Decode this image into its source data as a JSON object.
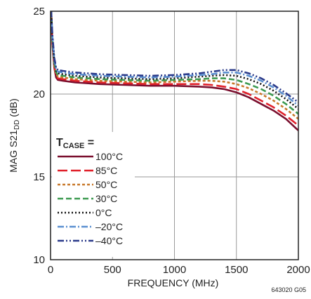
{
  "chart_data": {
    "type": "line",
    "title": "",
    "xlabel": "FREQUENCY (MHz)",
    "ylabel": "MAG S21DD (dB)",
    "ylabel_parts": {
      "main": "MAG S21",
      "sub": "DD",
      "unit": " (dB)"
    },
    "xlim": [
      0,
      2000
    ],
    "ylim": [
      10,
      25
    ],
    "xticks": [
      0,
      500,
      1000,
      1500,
      2000
    ],
    "yticks": [
      10,
      15,
      20,
      25
    ],
    "xtick_labels": [
      "0",
      "500",
      "1000",
      "1500",
      "2000"
    ],
    "ytick_labels": [
      "10",
      "15",
      "20",
      "25"
    ],
    "grid": true,
    "legend_placement": "lower-left",
    "legend_title": "TCASE =",
    "legend_title_parts": {
      "main": "T",
      "sub": "CASE",
      "tail": " ="
    },
    "note": "643020 G05",
    "series": [
      {
        "name": "100°C",
        "color": "#7a0f2e",
        "dash": "solid",
        "x": [
          5,
          15,
          30,
          45,
          60,
          100,
          200,
          400,
          600,
          800,
          1000,
          1200,
          1300,
          1400,
          1500,
          1600,
          1700,
          1800,
          1900,
          2000
        ],
        "y": [
          25.0,
          23.0,
          21.6,
          21.0,
          20.85,
          20.8,
          20.7,
          20.6,
          20.55,
          20.5,
          20.5,
          20.45,
          20.4,
          20.3,
          20.1,
          19.8,
          19.4,
          19.0,
          18.5,
          17.8
        ]
      },
      {
        "name": "85°C",
        "color": "#e0202a",
        "dash": "long",
        "x": [
          5,
          15,
          30,
          45,
          60,
          100,
          200,
          400,
          600,
          800,
          1000,
          1200,
          1300,
          1400,
          1500,
          1600,
          1700,
          1800,
          1900,
          2000
        ],
        "y": [
          25.0,
          23.1,
          21.7,
          21.1,
          20.95,
          20.9,
          20.8,
          20.7,
          20.65,
          20.6,
          20.6,
          20.6,
          20.55,
          20.45,
          20.3,
          20.0,
          19.6,
          19.2,
          18.7,
          18.1
        ]
      },
      {
        "name": "50°C",
        "color": "#c8782a",
        "dash": "short",
        "x": [
          5,
          15,
          30,
          45,
          60,
          100,
          200,
          400,
          600,
          800,
          1000,
          1200,
          1300,
          1400,
          1500,
          1600,
          1700,
          1800,
          1900,
          2000
        ],
        "y": [
          25.0,
          23.2,
          21.8,
          21.2,
          21.05,
          21.0,
          20.9,
          20.8,
          20.75,
          20.7,
          20.75,
          20.8,
          20.8,
          20.75,
          20.6,
          20.35,
          20.0,
          19.6,
          19.1,
          18.5
        ]
      },
      {
        "name": "30°C",
        "color": "#3c9a50",
        "dash": "medium",
        "x": [
          5,
          15,
          30,
          45,
          60,
          100,
          200,
          400,
          600,
          800,
          1000,
          1200,
          1300,
          1400,
          1500,
          1600,
          1700,
          1800,
          1900,
          2000
        ],
        "y": [
          25.0,
          23.3,
          21.9,
          21.3,
          21.15,
          21.1,
          21.0,
          20.9,
          20.85,
          20.8,
          20.85,
          20.9,
          20.95,
          20.95,
          20.85,
          20.6,
          20.3,
          19.9,
          19.4,
          18.8
        ]
      },
      {
        "name": "0°C",
        "color": "#111111",
        "dash": "dotted",
        "x": [
          5,
          15,
          30,
          45,
          60,
          100,
          200,
          400,
          600,
          800,
          1000,
          1200,
          1300,
          1400,
          1500,
          1600,
          1700,
          1800,
          1900,
          2000
        ],
        "y": [
          25.0,
          23.4,
          22.0,
          21.4,
          21.25,
          21.2,
          21.1,
          21.0,
          20.95,
          20.9,
          20.95,
          21.05,
          21.1,
          21.15,
          21.1,
          20.9,
          20.6,
          20.2,
          19.7,
          19.1
        ]
      },
      {
        "name": "–20°C",
        "color": "#5a8fd0",
        "dash": "dashdot",
        "x": [
          5,
          15,
          30,
          45,
          60,
          100,
          200,
          400,
          600,
          800,
          1000,
          1200,
          1300,
          1400,
          1500,
          1600,
          1700,
          1800,
          1900,
          2000
        ],
        "y": [
          25.0,
          23.5,
          22.1,
          21.5,
          21.35,
          21.3,
          21.2,
          21.1,
          21.05,
          21.0,
          21.05,
          21.15,
          21.2,
          21.3,
          21.3,
          21.1,
          20.8,
          20.4,
          19.9,
          19.3
        ]
      },
      {
        "name": "–40°C",
        "color": "#2a3a8a",
        "dash": "dashdotdot",
        "x": [
          5,
          15,
          30,
          45,
          60,
          100,
          200,
          400,
          600,
          800,
          1000,
          1200,
          1300,
          1400,
          1500,
          1600,
          1700,
          1800,
          1900,
          2000
        ],
        "y": [
          25.0,
          23.6,
          22.2,
          21.6,
          21.45,
          21.4,
          21.3,
          21.2,
          21.15,
          21.1,
          21.15,
          21.25,
          21.35,
          21.45,
          21.45,
          21.25,
          20.95,
          20.55,
          20.05,
          19.5
        ]
      }
    ]
  }
}
